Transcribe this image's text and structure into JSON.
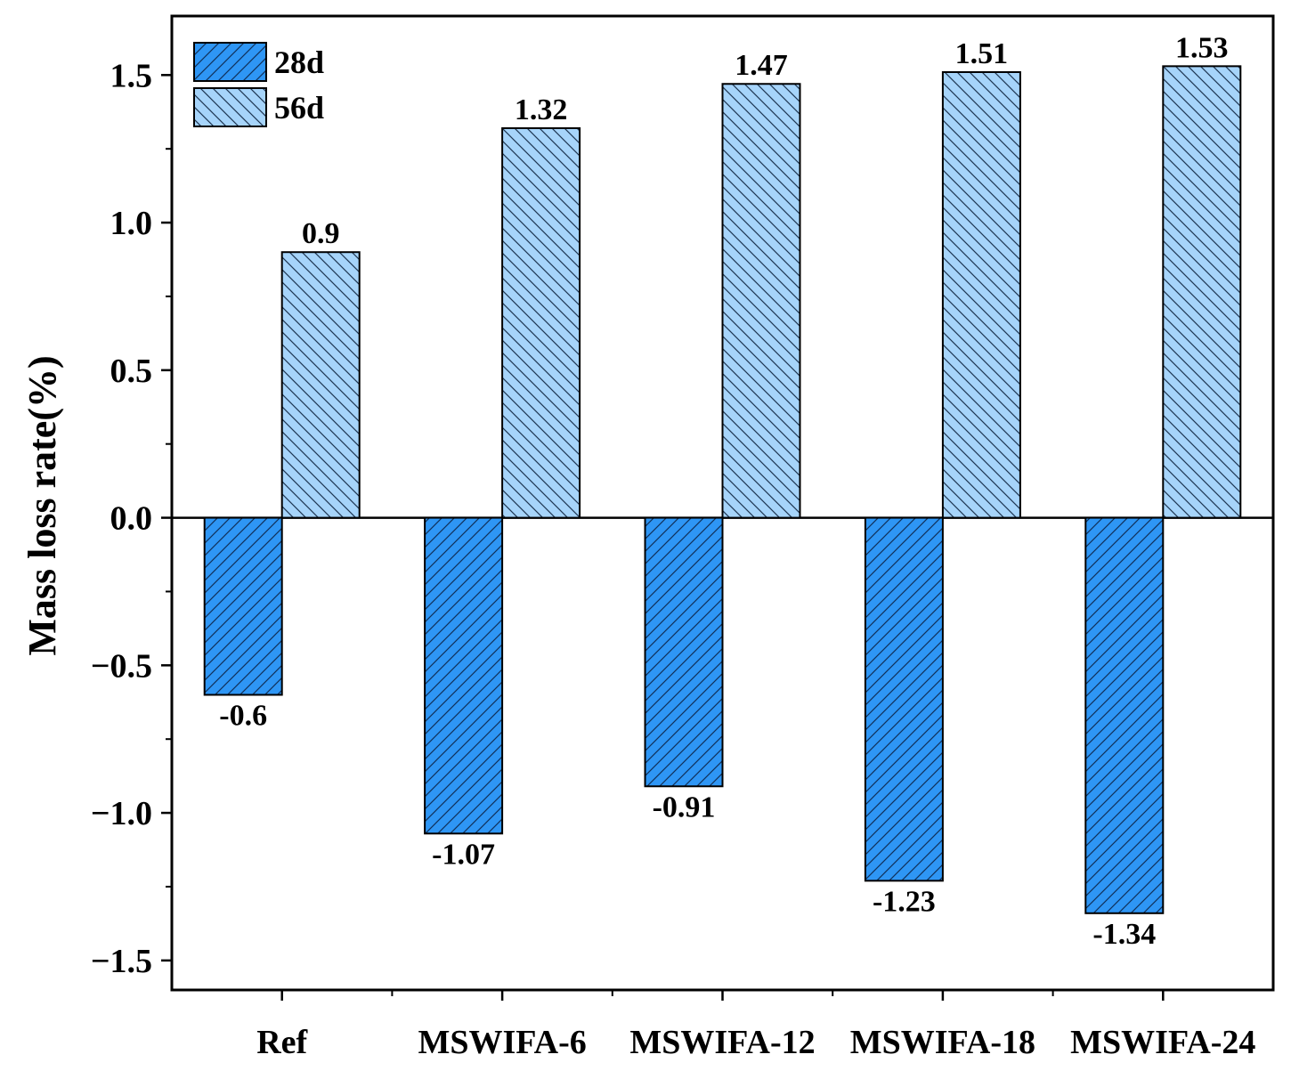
{
  "chart_data": {
    "type": "bar",
    "categories": [
      "Ref",
      "MSWIFA-6",
      "MSWIFA-12",
      "MSWIFA-18",
      "MSWIFA-24"
    ],
    "series": [
      {
        "name": "28d",
        "values": [
          -0.6,
          -1.07,
          -0.91,
          -1.23,
          -1.34
        ],
        "labels": [
          "-0.6",
          "-1.07",
          "-0.91",
          "-1.23",
          "-1.34"
        ],
        "color": "#2E96F5",
        "hatch": "forward"
      },
      {
        "name": "56d",
        "values": [
          0.9,
          1.32,
          1.47,
          1.51,
          1.53
        ],
        "labels": [
          "0.9",
          "1.32",
          "1.47",
          "1.51",
          "1.53"
        ],
        "color": "#A6D4FA",
        "hatch": "backward"
      }
    ],
    "title": "",
    "xlabel": "",
    "ylabel": "Mass loss rate(%)",
    "ylim": [
      -1.6,
      1.7
    ],
    "yticks": [
      -1.5,
      -1.0,
      -0.5,
      0.0,
      0.5,
      1.0,
      1.5
    ],
    "ytick_labels": [
      "−1.5",
      "−1.0",
      "−0.5",
      "0.0",
      "0.5",
      "1.0",
      "1.5"
    ],
    "legend": "top-left",
    "grid": false
  }
}
